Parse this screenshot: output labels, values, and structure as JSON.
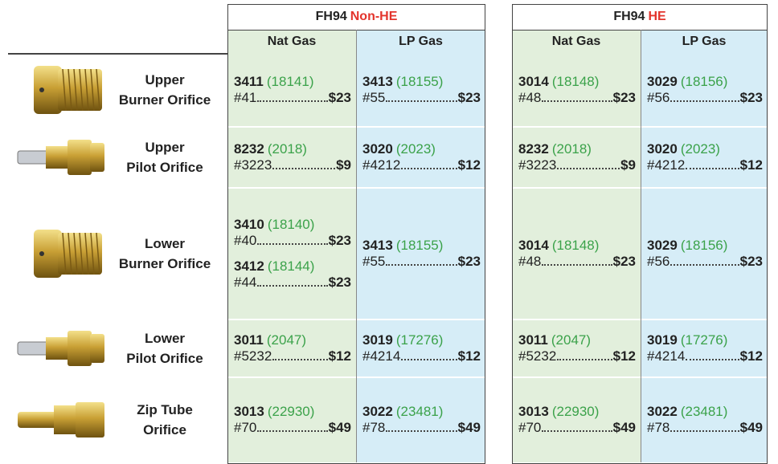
{
  "header": {
    "groups": [
      {
        "model": "FH94",
        "variant": "Non-HE",
        "columns": [
          "Nat Gas",
          "LP Gas"
        ]
      },
      {
        "model": "FH94",
        "variant": "HE",
        "columns": [
          "Nat Gas",
          "LP Gas"
        ]
      }
    ]
  },
  "rows": [
    {
      "label": [
        "Upper",
        "Burner Orifice"
      ],
      "cells": [
        [
          {
            "part": "3411",
            "alt": "(18141)",
            "size": "#41",
            "price": "$23"
          }
        ],
        [
          {
            "part": "3413",
            "alt": "(18155)",
            "size": "#55",
            "price": "$23"
          }
        ],
        [
          {
            "part": "3014",
            "alt": "(18148)",
            "size": "#48",
            "price": "$23"
          }
        ],
        [
          {
            "part": "3029",
            "alt": "(18156)",
            "size": "#56",
            "price": "$23"
          }
        ]
      ]
    },
    {
      "label": [
        "Upper",
        "Pilot Orifice"
      ],
      "cells": [
        [
          {
            "part": "8232",
            "alt": "(2018)",
            "size": "#3223",
            "price": "$9"
          }
        ],
        [
          {
            "part": "3020",
            "alt": "(2023)",
            "size": "#4212",
            "price": "$12"
          }
        ],
        [
          {
            "part": "8232",
            "alt": "(2018)",
            "size": "#3223",
            "price": "$9"
          }
        ],
        [
          {
            "part": "3020",
            "alt": "(2023)",
            "size": "#4212",
            "price": "$12"
          }
        ]
      ]
    },
    {
      "label": [
        "Lower",
        "Burner Orifice"
      ],
      "cells": [
        [
          {
            "part": "3410",
            "alt": "(18140)",
            "size": "#40",
            "price": "$23"
          },
          {
            "part": "3412",
            "alt": "(18144)",
            "size": "#44",
            "price": "$23"
          }
        ],
        [
          {
            "part": "3413",
            "alt": "(18155)",
            "size": "#55",
            "price": "$23"
          }
        ],
        [
          {
            "part": "3014",
            "alt": "(18148)",
            "size": "#48",
            "price": "$23"
          }
        ],
        [
          {
            "part": "3029",
            "alt": "(18156)",
            "size": "#56",
            "price": "$23"
          }
        ]
      ]
    },
    {
      "label": [
        "Lower",
        "Pilot Orifice"
      ],
      "cells": [
        [
          {
            "part": "3011",
            "alt": "(2047)",
            "size": "#5232",
            "price": "$12"
          }
        ],
        [
          {
            "part": "3019",
            "alt": "(17276)",
            "size": "#4214",
            "price": "$12"
          }
        ],
        [
          {
            "part": "3011",
            "alt": "(2047)",
            "size": "#5232",
            "price": "$12"
          }
        ],
        [
          {
            "part": "3019",
            "alt": "(17276)",
            "size": "#4214",
            "price": "$12"
          }
        ]
      ]
    },
    {
      "label": [
        "Zip Tube",
        "Orifice"
      ],
      "cells": [
        [
          {
            "part": "3013",
            "alt": "(22930)",
            "size": "#70",
            "price": "$49"
          }
        ],
        [
          {
            "part": "3022",
            "alt": "(23481)",
            "size": "#78",
            "price": "$49"
          }
        ],
        [
          {
            "part": "3013",
            "alt": "(22930)",
            "size": "#70",
            "price": "$49"
          }
        ],
        [
          {
            "part": "3022",
            "alt": "(23481)",
            "size": "#78",
            "price": "$49"
          }
        ]
      ]
    }
  ]
}
